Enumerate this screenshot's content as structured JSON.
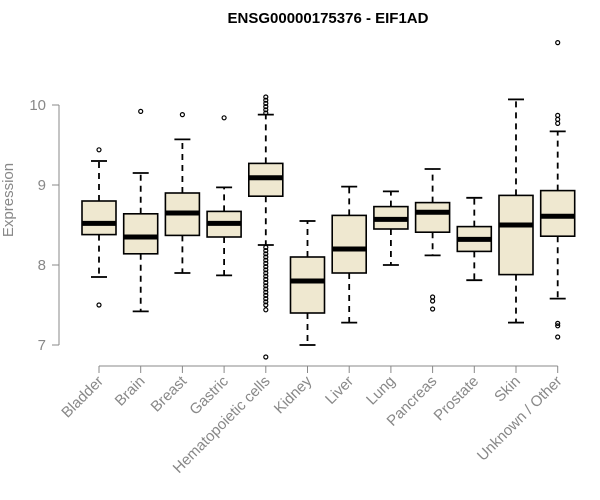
{
  "chart_data": {
    "type": "boxplot",
    "title": "ENSG00000175376 - EIF1AD",
    "xlabel": "",
    "ylabel": "Expression",
    "ylim": [
      6.8,
      10.8
    ],
    "yticks": [
      7,
      8,
      9,
      10
    ],
    "grid": false,
    "legend": "none",
    "box_fill": "#EFE8D0",
    "box_stroke": "#000000",
    "categories": [
      "Bladder",
      "Brain",
      "Breast",
      "Gastric",
      "Hematopoietic cells",
      "Kidney",
      "Liver",
      "Lung",
      "Pancreas",
      "Prostate",
      "Skin",
      "Unknown / Other"
    ],
    "boxes": [
      {
        "category": "Bladder",
        "whisker_low": 7.85,
        "q1": 8.38,
        "median": 8.52,
        "q3": 8.8,
        "whisker_high": 9.3,
        "outliers": [
          9.44,
          7.5
        ]
      },
      {
        "category": "Brain",
        "whisker_low": 7.42,
        "q1": 8.14,
        "median": 8.35,
        "q3": 8.64,
        "whisker_high": 9.15,
        "outliers": [
          9.92
        ]
      },
      {
        "category": "Breast",
        "whisker_low": 7.9,
        "q1": 8.37,
        "median": 8.65,
        "q3": 8.9,
        "whisker_high": 9.57,
        "outliers": [
          9.88
        ]
      },
      {
        "category": "Gastric",
        "whisker_low": 7.87,
        "q1": 8.35,
        "median": 8.52,
        "q3": 8.67,
        "whisker_high": 8.97,
        "outliers": [
          9.84
        ]
      },
      {
        "category": "Hematopoietic cells",
        "whisker_low": 8.25,
        "q1": 8.86,
        "median": 9.09,
        "q3": 9.27,
        "whisker_high": 9.88,
        "outliers": [
          10.1,
          10.06,
          10.02,
          9.98,
          9.94,
          9.9,
          8.22,
          8.18,
          8.14,
          8.1,
          8.06,
          8.02,
          7.98,
          7.94,
          7.9,
          7.86,
          7.82,
          7.78,
          7.74,
          7.7,
          7.66,
          7.62,
          7.58,
          7.54,
          7.5,
          7.44,
          6.85
        ]
      },
      {
        "category": "Kidney",
        "whisker_low": 7.0,
        "q1": 7.4,
        "median": 7.8,
        "q3": 8.1,
        "whisker_high": 8.55,
        "outliers": []
      },
      {
        "category": "Liver",
        "whisker_low": 7.28,
        "q1": 7.9,
        "median": 8.2,
        "q3": 8.62,
        "whisker_high": 8.98,
        "outliers": []
      },
      {
        "category": "Lung",
        "whisker_low": 8.0,
        "q1": 8.45,
        "median": 8.57,
        "q3": 8.73,
        "whisker_high": 8.92,
        "outliers": []
      },
      {
        "category": "Pancreas",
        "whisker_low": 8.12,
        "q1": 8.41,
        "median": 8.66,
        "q3": 8.78,
        "whisker_high": 9.2,
        "outliers": [
          7.6,
          7.55,
          7.45
        ]
      },
      {
        "category": "Prostate",
        "whisker_low": 7.81,
        "q1": 8.17,
        "median": 8.32,
        "q3": 8.48,
        "whisker_high": 8.84,
        "outliers": []
      },
      {
        "category": "Skin",
        "whisker_low": 7.28,
        "q1": 7.88,
        "median": 8.5,
        "q3": 8.87,
        "whisker_high": 10.07,
        "outliers": []
      },
      {
        "category": "Unknown / Other",
        "whisker_low": 7.58,
        "q1": 8.36,
        "median": 8.61,
        "q3": 8.93,
        "whisker_high": 9.67,
        "outliers": [
          10.78,
          9.87,
          9.82,
          9.77,
          7.27,
          7.24,
          7.1
        ]
      }
    ]
  }
}
